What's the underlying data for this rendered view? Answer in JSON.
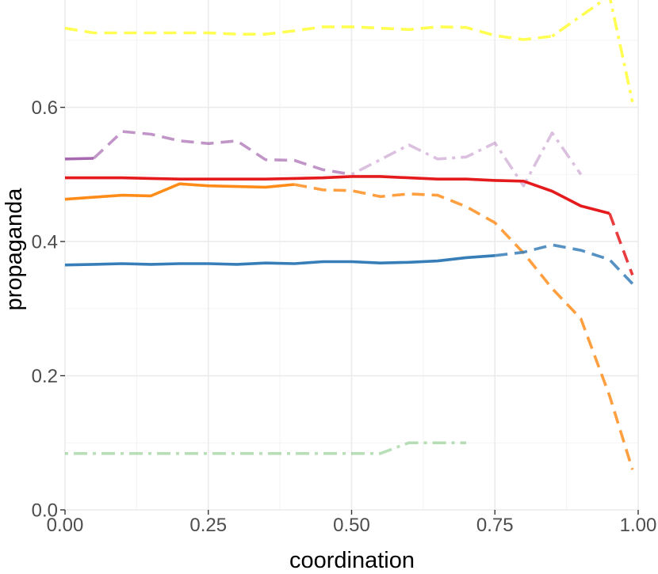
{
  "chart_data": {
    "type": "line",
    "title": "",
    "xlabel": "coordination",
    "ylabel": "propaganda",
    "xlim": [
      0,
      1
    ],
    "ylim": [
      0,
      0.76
    ],
    "x_ticks": [
      0,
      0.25,
      0.5,
      0.75,
      1
    ],
    "x_tick_labels": [
      "0.00",
      "0.25",
      "0.50",
      "0.75",
      "1.00"
    ],
    "y_ticks": [
      0,
      0.2,
      0.4,
      0.6
    ],
    "y_tick_labels": [
      "0.0",
      "0.2",
      "0.4",
      "0.6"
    ],
    "grid": true,
    "legend": "none",
    "series": [
      {
        "color": "#ffff33",
        "segments": [
          {
            "style": "dashed",
            "alpha": 0.85,
            "x": [
              0.0,
              0.05,
              0.1,
              0.15,
              0.2,
              0.25,
              0.3,
              0.35,
              0.4,
              0.45,
              0.5,
              0.55,
              0.6,
              0.65,
              0.7,
              0.75,
              0.8,
              0.85
            ],
            "y": [
              0.718,
              0.711,
              0.711,
              0.711,
              0.711,
              0.711,
              0.709,
              0.709,
              0.714,
              0.72,
              0.72,
              0.718,
              0.716,
              0.72,
              0.719,
              0.707,
              0.701,
              0.706
            ]
          },
          {
            "style": "dotdash",
            "alpha": 0.85,
            "x": [
              0.85,
              0.9,
              0.95,
              0.99
            ],
            "y": [
              0.706,
              0.736,
              0.766,
              0.608
            ]
          }
        ]
      },
      {
        "color": "#984ea3",
        "segments": [
          {
            "style": "solid",
            "alpha": 0.85,
            "x": [
              0.0,
              0.05
            ],
            "y": [
              0.523,
              0.524
            ]
          },
          {
            "style": "dashed",
            "alpha": 0.6,
            "x": [
              0.05,
              0.1,
              0.15,
              0.2,
              0.25,
              0.3,
              0.35,
              0.4,
              0.45,
              0.5
            ],
            "y": [
              0.524,
              0.564,
              0.56,
              0.55,
              0.546,
              0.55,
              0.522,
              0.521,
              0.507,
              0.5
            ]
          },
          {
            "style": "dotdash",
            "alpha": 0.35,
            "x": [
              0.5,
              0.55,
              0.6,
              0.65,
              0.7,
              0.75,
              0.8,
              0.85,
              0.9
            ],
            "y": [
              0.5,
              0.522,
              0.544,
              0.523,
              0.526,
              0.547,
              0.483,
              0.562,
              0.5
            ]
          }
        ]
      },
      {
        "color": "#e41a1c",
        "segments": [
          {
            "style": "solid",
            "alpha": 1.0,
            "x": [
              0.0,
              0.05,
              0.1,
              0.15,
              0.2,
              0.25,
              0.3,
              0.35,
              0.4,
              0.45,
              0.5,
              0.55,
              0.6,
              0.65,
              0.7,
              0.75,
              0.8,
              0.85,
              0.9,
              0.95
            ],
            "y": [
              0.495,
              0.495,
              0.495,
              0.494,
              0.493,
              0.493,
              0.493,
              0.493,
              0.494,
              0.495,
              0.497,
              0.497,
              0.495,
              0.493,
              0.493,
              0.491,
              0.49,
              0.475,
              0.453,
              0.442
            ]
          },
          {
            "style": "dashed",
            "alpha": 0.85,
            "x": [
              0.95,
              0.99
            ],
            "y": [
              0.442,
              0.35
            ]
          }
        ]
      },
      {
        "color": "#ff7f00",
        "segments": [
          {
            "style": "solid",
            "alpha": 0.9,
            "x": [
              0.0,
              0.05,
              0.1,
              0.15,
              0.2,
              0.25,
              0.3,
              0.35,
              0.4
            ],
            "y": [
              0.463,
              0.466,
              0.469,
              0.468,
              0.486,
              0.483,
              0.482,
              0.481,
              0.485
            ]
          },
          {
            "style": "dashed",
            "alpha": 0.75,
            "x": [
              0.4,
              0.45,
              0.5,
              0.55,
              0.6,
              0.65,
              0.7,
              0.75,
              0.8,
              0.85,
              0.9,
              0.95,
              0.99
            ],
            "y": [
              0.485,
              0.477,
              0.476,
              0.467,
              0.471,
              0.469,
              0.452,
              0.428,
              0.383,
              0.33,
              0.285,
              0.17,
              0.06
            ]
          }
        ]
      },
      {
        "color": "#377eb8",
        "segments": [
          {
            "style": "solid",
            "alpha": 1.0,
            "x": [
              0.0,
              0.05,
              0.1,
              0.15,
              0.2,
              0.25,
              0.3,
              0.35,
              0.4,
              0.45,
              0.5,
              0.55,
              0.6,
              0.65,
              0.7,
              0.75
            ],
            "y": [
              0.365,
              0.366,
              0.367,
              0.366,
              0.367,
              0.367,
              0.366,
              0.368,
              0.367,
              0.37,
              0.37,
              0.368,
              0.369,
              0.371,
              0.376,
              0.379
            ]
          },
          {
            "style": "dashed",
            "alpha": 0.85,
            "x": [
              0.75,
              0.8,
              0.85,
              0.9,
              0.95,
              0.99
            ],
            "y": [
              0.379,
              0.384,
              0.395,
              0.387,
              0.373,
              0.337
            ]
          }
        ]
      },
      {
        "color": "#4daf4a",
        "segments": [
          {
            "style": "dotdash",
            "alpha": 0.4,
            "x": [
              0.0,
              0.05,
              0.1,
              0.15,
              0.2,
              0.25,
              0.3,
              0.35,
              0.4,
              0.45,
              0.5,
              0.55,
              0.6,
              0.65,
              0.7
            ],
            "y": [
              0.084,
              0.084,
              0.084,
              0.084,
              0.084,
              0.084,
              0.084,
              0.084,
              0.084,
              0.084,
              0.084,
              0.084,
              0.1,
              0.1,
              0.1
            ]
          }
        ]
      }
    ]
  }
}
